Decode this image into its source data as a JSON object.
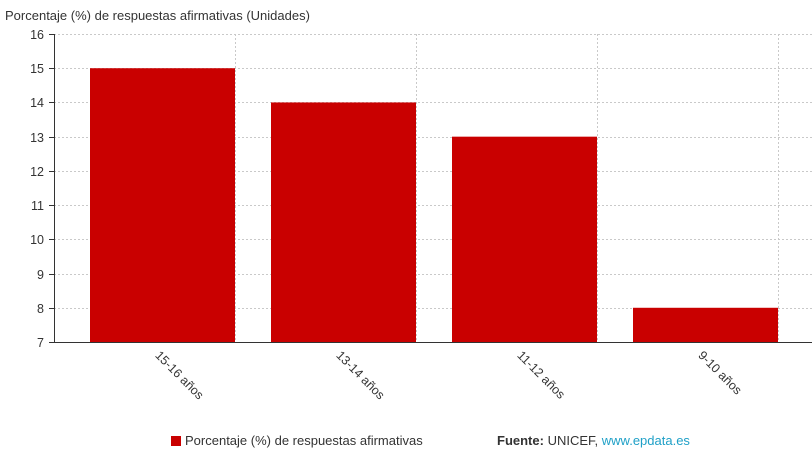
{
  "colors": {
    "bar": "#c90000",
    "grid": "#c9c9c9",
    "axis": "#333333",
    "link": "#1fa0c7"
  },
  "chart_data": {
    "type": "bar",
    "title": "Porcentaje (%) de respuestas afirmativas (Unidades)",
    "categories": [
      "15-16 años",
      "13-14 años",
      "11-12 años",
      "9-10 años"
    ],
    "series": [
      {
        "name": "Porcentaje (%) de respuestas afirmativas",
        "values": [
          15,
          14,
          13,
          8
        ]
      }
    ],
    "ylim": [
      7,
      16
    ],
    "yticks": [
      7,
      8,
      9,
      10,
      11,
      12,
      13,
      14,
      15,
      16
    ],
    "grid": true,
    "legend_position": "bottom"
  },
  "legend": {
    "label": "Porcentaje (%) de respuestas afirmativas"
  },
  "source": {
    "key": "Fuente:",
    "org": "UNICEF,",
    "link_text": "www.epdata.es"
  }
}
